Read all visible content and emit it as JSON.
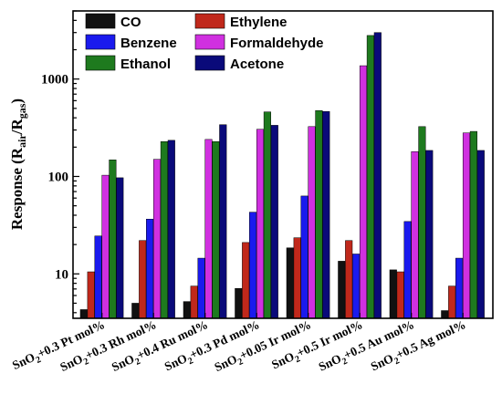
{
  "chart_data": {
    "type": "bar",
    "yscale": "log",
    "ylim": [
      3.5,
      5000
    ],
    "ylabel": {
      "main": "Response (R",
      "sub1": "air",
      "mid": "/R",
      "sub2": "gas",
      "end": ")"
    },
    "yticks": [
      10,
      100,
      1000
    ],
    "ytick_labels": [
      "10",
      "100",
      "1000"
    ],
    "categories": [
      {
        "base": "SnO",
        "sub": "2",
        "rest": "+0.3 Pt mol%"
      },
      {
        "base": "SnO",
        "sub": "2",
        "rest": "+0.3 Rh mol%"
      },
      {
        "base": "SnO",
        "sub": "2",
        "rest": "+0.4 Ru mol%"
      },
      {
        "base": "SnO",
        "sub": "2",
        "rest": "+0.3 Pd mol%"
      },
      {
        "base": "SnO",
        "sub": "2",
        "rest": "+0.05 Ir mol%"
      },
      {
        "base": "SnO",
        "sub": "2",
        "rest": "+0.5 Ir mol%"
      },
      {
        "base": "SnO",
        "sub": "2",
        "rest": "+0.5 Au mol%"
      },
      {
        "base": "SnO",
        "sub": "2",
        "rest": "+0.5 Ag mol%"
      }
    ],
    "series": [
      {
        "name": "CO",
        "color": "#111111",
        "values": [
          4.3,
          5.0,
          5.2,
          7.1,
          18.5,
          13.5,
          11.0,
          4.2
        ]
      },
      {
        "name": "Ethylene",
        "color": "#c0281b",
        "values": [
          10.5,
          22.0,
          7.5,
          21.0,
          23.5,
          22.0,
          10.5,
          7.5
        ]
      },
      {
        "name": "Benzene",
        "color": "#1a1aee",
        "values": [
          24.5,
          36.5,
          14.5,
          43.0,
          63.0,
          16.0,
          34.5,
          14.5
        ]
      },
      {
        "name": "Formaldehyde",
        "color": "#d030e0",
        "values": [
          103,
          150,
          240,
          305,
          325,
          1370,
          180,
          280
        ]
      },
      {
        "name": "Ethanol",
        "color": "#1e7a1e",
        "values": [
          148,
          228,
          228,
          460,
          475,
          2800,
          325,
          290
        ]
      },
      {
        "name": "Acetone",
        "color": "#0a0a7a",
        "values": [
          97,
          235,
          340,
          335,
          465,
          3000,
          185,
          185
        ]
      }
    ],
    "legend": {
      "placement": "top-left",
      "columns": 2
    },
    "grid": false
  }
}
